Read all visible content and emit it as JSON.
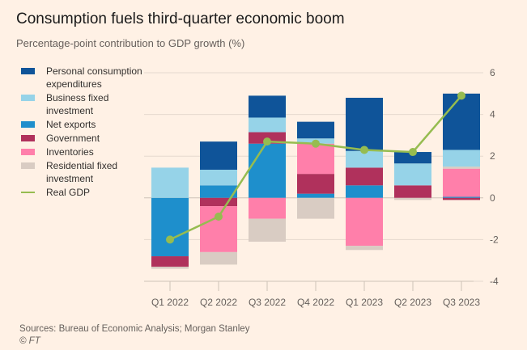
{
  "header": {
    "title": "Consumption fuels third-quarter economic boom",
    "subtitle": "Percentage-point contribution to GDP growth (%)"
  },
  "footer": {
    "sources": "Sources: Bureau of Economic Analysis; Morgan Stanley",
    "copyright": "© FT"
  },
  "colors": {
    "pce": "#0F5499",
    "bfi": "#96D3E8",
    "net_exports": "#1E8FCC",
    "government": "#B0315C",
    "inventories": "#FF7FAA",
    "residential": "#D9CCC3",
    "real_gdp": "#96BC50",
    "grid": "#E6D9CE",
    "background": "#FFF1E5"
  },
  "chart_data": {
    "type": "bar",
    "stacked": true,
    "title": "Consumption fuels third-quarter economic boom",
    "subtitle": "Percentage-point contribution to GDP growth (%)",
    "xlabel": "",
    "ylabel": "",
    "ylim": [
      -4,
      6
    ],
    "yticks": [
      6,
      4,
      2,
      0,
      -2,
      -4
    ],
    "y_axis_side": "right",
    "grid": true,
    "legend_position": "left",
    "categories": [
      "Q1 2022",
      "Q2 2022",
      "Q3 2022",
      "Q4 2022",
      "Q1 2023",
      "Q2 2023",
      "Q3 2023"
    ],
    "series": [
      {
        "key": "pce",
        "name": "Personal consumption expenditures",
        "values": [
          0,
          1.35,
          1.05,
          0.8,
          2.55,
          0.55,
          2.7
        ]
      },
      {
        "key": "bfi",
        "name": "Business fixed investment",
        "values": [
          1.45,
          0.75,
          0.7,
          0.25,
          0.8,
          1.05,
          0.8
        ]
      },
      {
        "key": "net_exports",
        "name": "Net exports",
        "values": [
          -2.8,
          0.6,
          2.6,
          0.2,
          0.6,
          0,
          0.05
        ]
      },
      {
        "key": "government",
        "name": "Government",
        "values": [
          -0.5,
          -0.4,
          0.55,
          0.95,
          0.85,
          0.6,
          -0.1
        ]
      },
      {
        "key": "inventories",
        "name": "Inventories",
        "values": [
          0,
          -2.2,
          -1.0,
          1.45,
          -2.3,
          0,
          1.35
        ]
      },
      {
        "key": "residential",
        "name": "Residential fixed investment",
        "values": [
          -0.1,
          -0.6,
          -1.1,
          -1.0,
          -0.2,
          -0.1,
          0.1
        ]
      }
    ],
    "line_series": {
      "key": "real_gdp",
      "name": "Real GDP",
      "values": [
        -2.0,
        -0.9,
        2.7,
        2.6,
        2.3,
        2.2,
        4.9
      ]
    },
    "stack_order_positive": [
      "net_exports",
      "government",
      "inventories",
      "residential",
      "bfi",
      "pce"
    ],
    "legend": [
      {
        "key": "pce",
        "label": "Personal consumption expenditures"
      },
      {
        "key": "bfi",
        "label": "Business fixed investment"
      },
      {
        "key": "net_exports",
        "label": "Net exports"
      },
      {
        "key": "government",
        "label": "Government"
      },
      {
        "key": "inventories",
        "label": "Inventories"
      },
      {
        "key": "residential",
        "label": "Residential fixed investment"
      },
      {
        "key": "real_gdp",
        "label": "Real GDP"
      }
    ]
  }
}
